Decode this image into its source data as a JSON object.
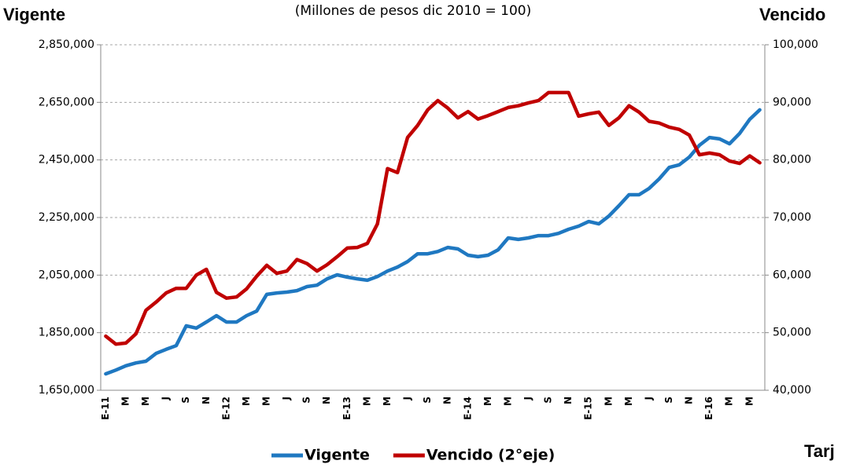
{
  "chart_data": {
    "type": "line",
    "subtitle": "(Millones de pesos dic 2010 = 100)",
    "y_label": "Vigente",
    "y2_label": "Vencido",
    "annotation": "Tarj",
    "categories": [
      "E-11",
      null,
      "M",
      null,
      "M",
      null,
      "J",
      null,
      "S",
      null,
      "N",
      null,
      "E-12",
      null,
      "M",
      null,
      "M",
      null,
      "J",
      null,
      "S",
      null,
      "N",
      null,
      "E-13",
      null,
      "M",
      null,
      "M",
      null,
      "J",
      null,
      "S",
      null,
      "N",
      null,
      "E-14",
      null,
      "M",
      null,
      "M",
      null,
      "J",
      null,
      "S",
      null,
      "N",
      null,
      "E-15",
      null,
      "M",
      null,
      "M",
      null,
      "J",
      null,
      "S",
      null,
      "N",
      null,
      "E-16",
      null,
      "M",
      null,
      "M",
      null
    ],
    "series": [
      {
        "name": "Vigente",
        "color": "#1f78c1",
        "values": [
          1707000,
          1720000,
          1735000,
          1745000,
          1751000,
          1778000,
          1792000,
          1805000,
          1874000,
          1866000,
          1887000,
          1909000,
          1887000,
          1887000,
          1909000,
          1925000,
          1983000,
          1988000,
          1991000,
          1996000,
          2010000,
          2015000,
          2037000,
          2051000,
          2043000,
          2037000,
          2032000,
          2045000,
          2064000,
          2078000,
          2097000,
          2124000,
          2124000,
          2132000,
          2146000,
          2141000,
          2119000,
          2114000,
          2119000,
          2138000,
          2179000,
          2174000,
          2179000,
          2187000,
          2187000,
          2195000,
          2209000,
          2220000,
          2236000,
          2228000,
          2255000,
          2291000,
          2329000,
          2329000,
          2351000,
          2384000,
          2424000,
          2433000,
          2460000,
          2501000,
          2528000,
          2523000,
          2506000,
          2542000,
          2591000,
          2624000
        ]
      },
      {
        "name": "Vencido (2°eje)",
        "color": "#c00000",
        "axis": "y2",
        "values": [
          49400,
          48000,
          48200,
          49800,
          53900,
          55300,
          56900,
          57700,
          57700,
          60000,
          61000,
          57000,
          56000,
          56200,
          57600,
          59800,
          61700,
          60300,
          60700,
          62700,
          62000,
          60700,
          61800,
          63200,
          64700,
          64800,
          65500,
          68900,
          78500,
          77800,
          83900,
          86000,
          88700,
          90300,
          89000,
          87300,
          88400,
          87100,
          87700,
          88400,
          89100,
          89400,
          89900,
          90300,
          91700,
          91700,
          91700,
          87600,
          88000,
          88300,
          86000,
          87300,
          89400,
          88300,
          86700,
          86400,
          85700,
          85300,
          84300,
          80900,
          81200,
          80900,
          79800,
          79400,
          80700,
          79500
        ]
      }
    ],
    "ylim": [
      1650000,
      2850000
    ],
    "yticks": [
      {
        "value": 1650000,
        "label": "1,650,000"
      },
      {
        "value": 1850000,
        "label": "1,850,000"
      },
      {
        "value": 2050000,
        "label": "2,050,000"
      },
      {
        "value": 2250000,
        "label": "2,250,000"
      },
      {
        "value": 2450000,
        "label": "2,450,000"
      },
      {
        "value": 2650000,
        "label": "2,650,000"
      },
      {
        "value": 2850000,
        "label": "2,850,000"
      }
    ],
    "y2lim": [
      40000,
      100000
    ],
    "y2ticks": [
      {
        "value": 40000,
        "label": "40,000"
      },
      {
        "value": 50000,
        "label": "50,000"
      },
      {
        "value": 60000,
        "label": "60,000"
      },
      {
        "value": 70000,
        "label": "70,000"
      },
      {
        "value": 80000,
        "label": "80,000"
      },
      {
        "value": 90000,
        "label": "90,000"
      },
      {
        "value": 100000,
        "label": "100,000"
      }
    ],
    "grid": true,
    "legend": "bottom"
  }
}
